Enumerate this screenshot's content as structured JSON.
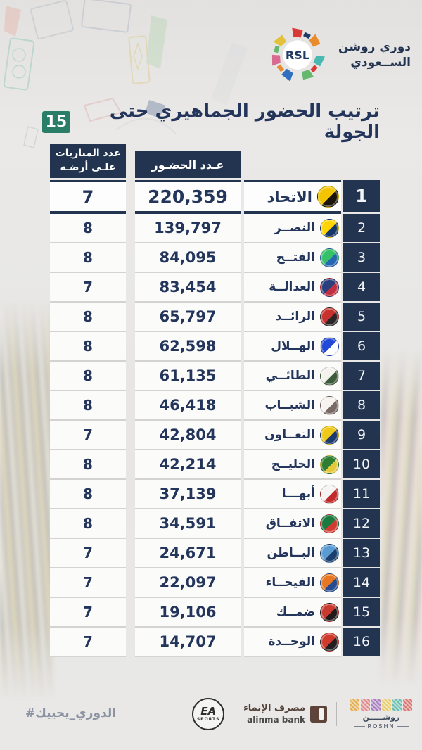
{
  "colors": {
    "navy": "#223450",
    "text_navy": "#24355c",
    "green_badge": "#2a7e68",
    "background": "#e7e6e4",
    "alinma_brown": "#5d4339",
    "hashtag_gray": "#8b92a2"
  },
  "brand": {
    "league_name_line1": "دوري روشن",
    "league_name_line2": "الســعودي",
    "logo_text": "RSL"
  },
  "title": {
    "text": "ترتيب الحضور الجماهيري حتى الجولة",
    "round_number": "15"
  },
  "table": {
    "headers": {
      "attendance": "عـدد الحضـور",
      "home_matches_line1": "عدد المباريات",
      "home_matches_line2": "علـى أرضـه"
    },
    "rows": [
      {
        "rank": "1",
        "team": "الاتحاد",
        "attendance": "220,359",
        "home_matches": "7",
        "logo_colors": [
          "#f2c500",
          "#1a1408"
        ]
      },
      {
        "rank": "2",
        "team": "النصــر",
        "attendance": "139,797",
        "home_matches": "8",
        "logo_colors": [
          "#ffd400",
          "#14366b"
        ]
      },
      {
        "rank": "3",
        "team": "الفتــح",
        "attendance": "84,095",
        "home_matches": "8",
        "logo_colors": [
          "#35c167",
          "#2766b1"
        ]
      },
      {
        "rank": "4",
        "team": "العدالــة",
        "attendance": "83,454",
        "home_matches": "7",
        "logo_colors": [
          "#2c3f7d",
          "#c03040"
        ]
      },
      {
        "rank": "5",
        "team": "الرائــد",
        "attendance": "65,797",
        "home_matches": "8",
        "logo_colors": [
          "#c8322e",
          "#2a2626"
        ]
      },
      {
        "rank": "6",
        "team": "الهــلال",
        "attendance": "62,598",
        "home_matches": "8",
        "logo_colors": [
          "#2148d6",
          "#ffffff"
        ]
      },
      {
        "rank": "7",
        "team": "الطائــي",
        "attendance": "61,135",
        "home_matches": "8",
        "logo_colors": [
          "#f4f2ec",
          "#3d5a3a"
        ]
      },
      {
        "rank": "8",
        "team": "الشبــاب",
        "attendance": "46,418",
        "home_matches": "8",
        "logo_colors": [
          "#f7f4f0",
          "#7a6a66"
        ]
      },
      {
        "rank": "9",
        "team": "التعــاون",
        "attendance": "42,804",
        "home_matches": "7",
        "logo_colors": [
          "#f0c818",
          "#1d3a6e"
        ]
      },
      {
        "rank": "10",
        "team": "الخليــج",
        "attendance": "42,214",
        "home_matches": "8",
        "logo_colors": [
          "#2e7d32",
          "#e5c93a"
        ]
      },
      {
        "rank": "11",
        "team": "أبهـــا",
        "attendance": "37,139",
        "home_matches": "8",
        "logo_colors": [
          "#f5f4f2",
          "#c22b2b"
        ]
      },
      {
        "rank": "12",
        "team": "الاتفــاق",
        "attendance": "34,591",
        "home_matches": "8",
        "logo_colors": [
          "#1d7a3f",
          "#d23b33"
        ]
      },
      {
        "rank": "13",
        "team": "البــاطن",
        "attendance": "24,671",
        "home_matches": "7",
        "logo_colors": [
          "#5a9bd4",
          "#1c3f6e"
        ]
      },
      {
        "rank": "14",
        "team": "الفيحــاء",
        "attendance": "22,097",
        "home_matches": "7",
        "logo_colors": [
          "#e87722",
          "#274b8f"
        ]
      },
      {
        "rank": "15",
        "team": "ضمــك",
        "attendance": "19,106",
        "home_matches": "7",
        "logo_colors": [
          "#c8392f",
          "#211c1c"
        ]
      },
      {
        "rank": "16",
        "team": "الوحــدة",
        "attendance": "14,707",
        "home_matches": "7",
        "logo_colors": [
          "#d03a2c",
          "#231f20"
        ]
      }
    ]
  },
  "footer": {
    "hashtag": "#الدوري_يحييك",
    "sponsors": {
      "ea_line1": "EA",
      "ea_line2": "SPORTS",
      "alinma_ar": "مصرف الإنماء",
      "alinma_en": "alinma bank",
      "roshn_ar": "روشـــــن",
      "roshn_en": "ROSHN",
      "roshn_tiles": [
        "#e2a33b",
        "#df7d80",
        "#9a6cb4",
        "#e7c95b",
        "#56b7a7",
        "#d8625d"
      ]
    }
  }
}
